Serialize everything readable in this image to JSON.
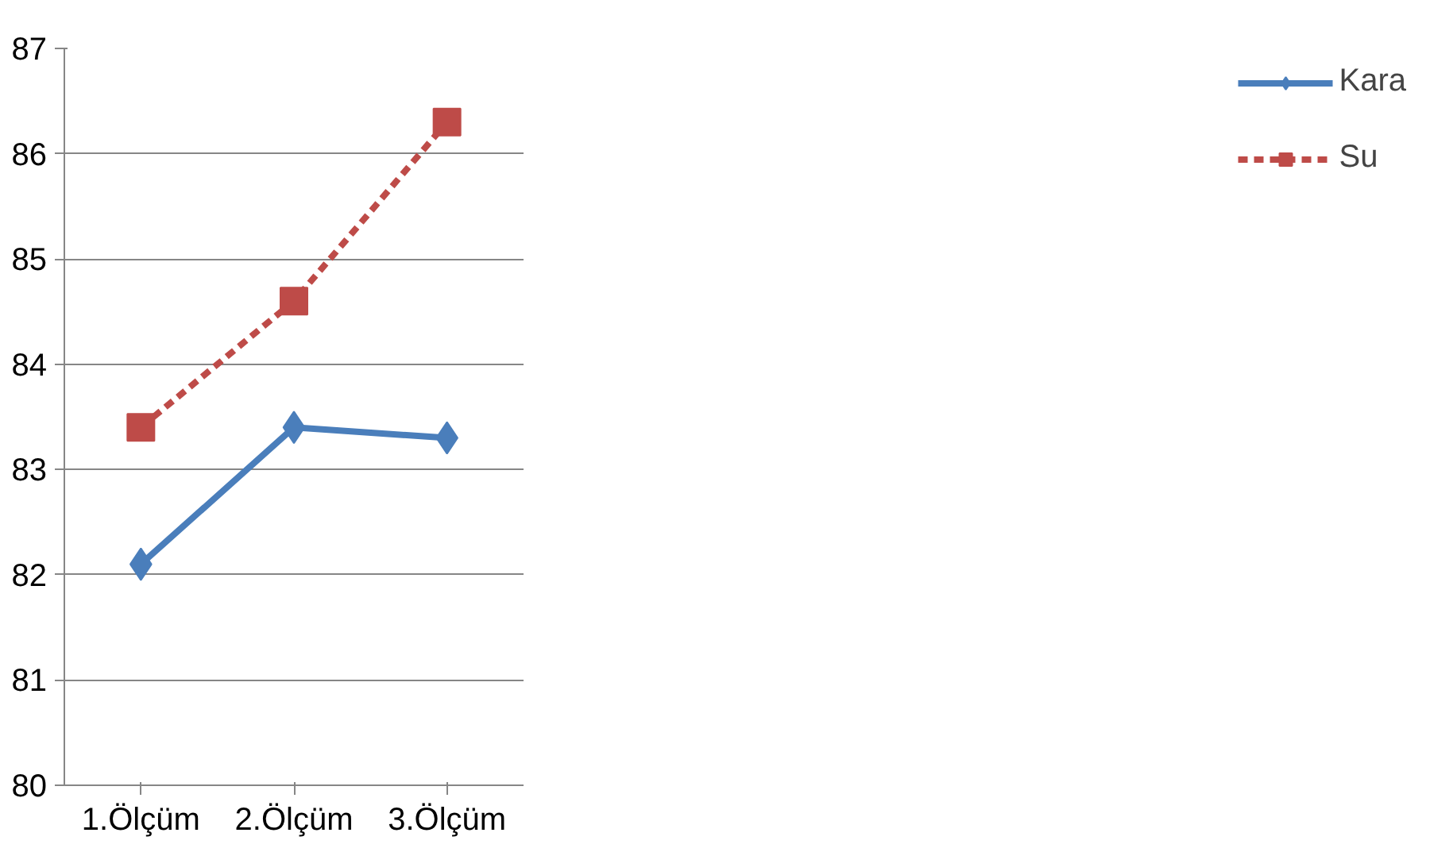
{
  "chart_data": {
    "type": "line",
    "categories": [
      "1.Ölçüm",
      "2.Ölçüm",
      "3.Ölçüm"
    ],
    "series": [
      {
        "name": "Kara",
        "color": "#4a7ebb",
        "values": [
          82.1,
          83.4,
          83.3
        ],
        "marker": "diamond",
        "line_style": "solid"
      },
      {
        "name": "Su",
        "color": "#be4b48",
        "values": [
          83.4,
          84.6,
          86.3
        ],
        "marker": "square",
        "line_style": "dashed"
      }
    ],
    "ylim": [
      80,
      87
    ],
    "yticks": [
      80,
      81,
      82,
      83,
      84,
      85,
      86,
      87
    ],
    "grid": "y",
    "legend": "right"
  }
}
